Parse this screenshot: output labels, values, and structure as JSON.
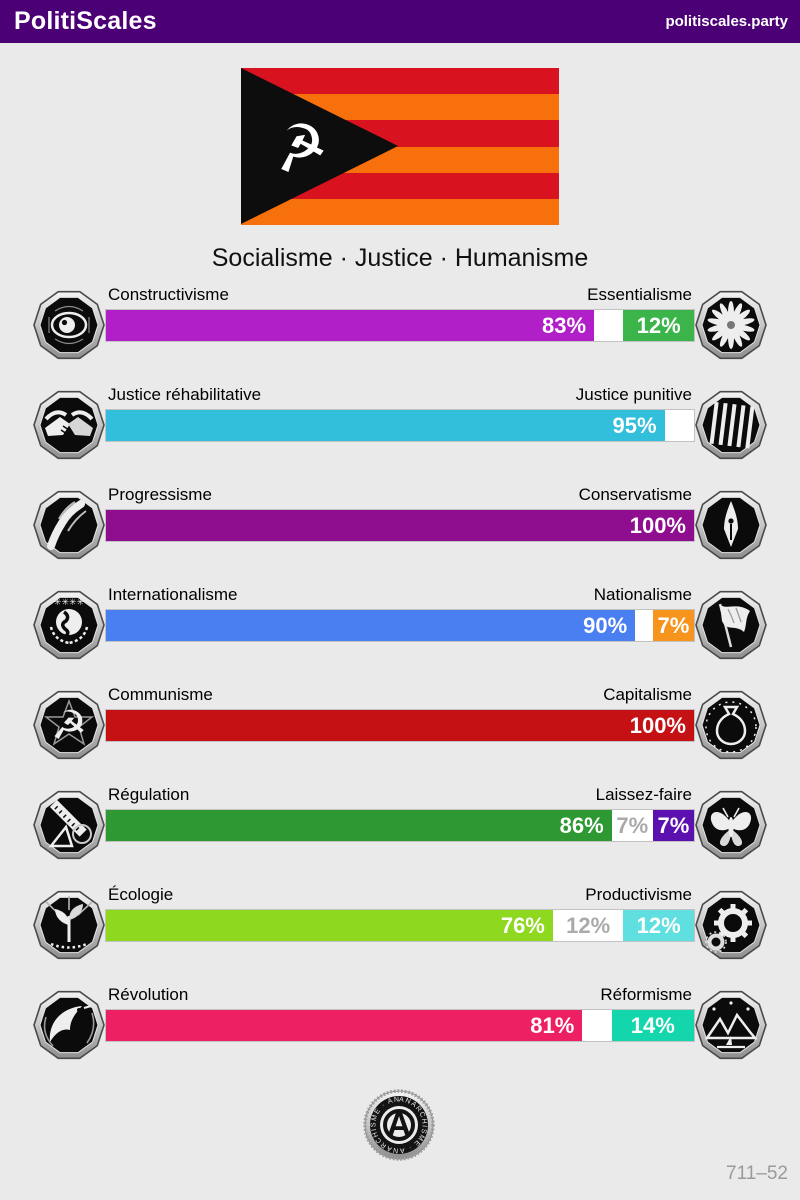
{
  "header": {
    "title": "PolitiScales",
    "site": "politiscales.party"
  },
  "flag": {
    "name": "red-orange-striped-flag",
    "stripe_colors": [
      "#d8121f",
      "#f7700c",
      "#d8121f",
      "#f7700c",
      "#d8121f",
      "#f7700c"
    ],
    "triangle_color": "#0d0d0d",
    "emblem_icon": "hammer-and-sickle-icon"
  },
  "subtitle": "Socialisme · Justice · Humanisme",
  "axes": [
    {
      "left_label": "Constructivisme",
      "right_label": "Essentialisme",
      "left_pct": 83,
      "neutral_pct": 5,
      "right_pct": 12,
      "left_text": "83%",
      "neutral_text": "",
      "right_text": "12%",
      "left_color": "#b01fc7",
      "right_color": "#3bb54a",
      "left_icon": "eye-icon",
      "right_icon": "flower-icon"
    },
    {
      "left_label": "Justice réhabilitative",
      "right_label": "Justice punitive",
      "left_pct": 95,
      "neutral_pct": 5,
      "right_pct": 0,
      "left_text": "95%",
      "neutral_text": "",
      "right_text": "",
      "left_color": "#31bfdb",
      "right_color": null,
      "left_icon": "handshake-icon",
      "right_icon": "prison-bars-icon"
    },
    {
      "left_label": "Progressisme",
      "right_label": "Conservatisme",
      "left_pct": 100,
      "neutral_pct": 0,
      "right_pct": 0,
      "left_text": "100%",
      "neutral_text": "",
      "right_text": "",
      "left_color": "#8f0e8f",
      "right_color": null,
      "left_icon": "flowing-hand-icon",
      "right_icon": "pen-nib-icon"
    },
    {
      "left_label": "Internationalisme",
      "right_label": "Nationalisme",
      "left_pct": 90,
      "neutral_pct": 3,
      "right_pct": 7,
      "left_text": "90%",
      "neutral_text": "",
      "right_text": "7%",
      "left_color": "#4a7ff2",
      "right_color": "#f7941e",
      "left_icon": "globe-icon",
      "right_icon": "waving-flag-icon"
    },
    {
      "left_label": "Communisme",
      "right_label": "Capitalisme",
      "left_pct": 100,
      "neutral_pct": 0,
      "right_pct": 0,
      "left_text": "100%",
      "neutral_text": "",
      "right_text": "",
      "left_color": "#c51114",
      "right_color": null,
      "left_icon": "hammer-sickle-icon",
      "right_icon": "money-bag-icon"
    },
    {
      "left_label": "Régulation",
      "right_label": "Laissez-faire",
      "left_pct": 86,
      "neutral_pct": 7,
      "right_pct": 7,
      "left_text": "86%",
      "neutral_text": "7%",
      "right_text": "7%",
      "left_color": "#2e9932",
      "right_color": "#5c10af",
      "left_icon": "geometry-tools-icon",
      "right_icon": "butterfly-icon"
    },
    {
      "left_label": "Écologie",
      "right_label": "Productivisme",
      "left_pct": 76,
      "neutral_pct": 12,
      "right_pct": 12,
      "left_text": "76%",
      "neutral_text": "12%",
      "right_text": "12%",
      "left_color": "#8ed81f",
      "right_color": "#5fdfe0",
      "left_icon": "sprout-icon",
      "right_icon": "gear-icon"
    },
    {
      "left_label": "Révolution",
      "right_label": "Réformisme",
      "left_pct": 81,
      "neutral_pct": 5,
      "right_pct": 14,
      "left_text": "81%",
      "neutral_text": "",
      "right_text": "14%",
      "left_color": "#ed2063",
      "right_color": "#13d6ac",
      "left_icon": "bird-icon",
      "right_icon": "landscape-icon"
    }
  ],
  "footer": {
    "seal_icon": "anarchism-seal-icon",
    "seal_text": "ANARCHISME",
    "code": "711–52"
  },
  "theme": {
    "header_bg": "#4b0076",
    "page_bg": "#eaeaea",
    "neutral_segment": "#ffffff",
    "neutral_text_color": "#aaaaaa"
  }
}
